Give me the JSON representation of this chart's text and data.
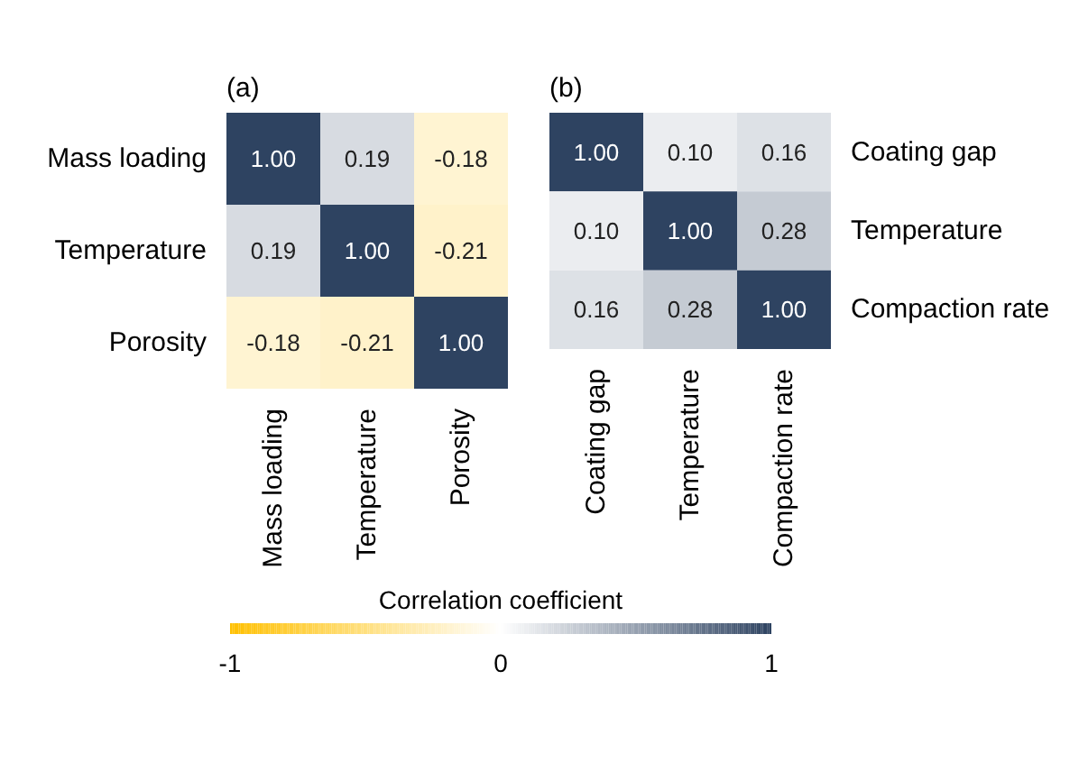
{
  "chart_data": [
    {
      "type": "heatmap",
      "title": "(a)",
      "categories": [
        "Mass loading",
        "Temperature",
        "Porosity"
      ],
      "y_categories": [
        "Mass loading",
        "Temperature",
        "Porosity"
      ],
      "cells": [
        [
          1,
          0.19,
          -0.18
        ],
        [
          0.19,
          1,
          -0.21
        ],
        [
          -0.18,
          -0.21,
          1
        ]
      ],
      "cell_labels": [
        [
          "1.00",
          "0.19",
          "-0.18"
        ],
        [
          "0.19",
          "1.00",
          "-0.21"
        ],
        [
          "-0.18",
          "-0.21",
          "1.00"
        ]
      ],
      "colors": [
        "#ffc000",
        "#ffffff",
        "#2e4361"
      ]
    },
    {
      "type": "heatmap",
      "title": "(b)",
      "categories": [
        "Coating gap",
        "Temperature",
        "Compaction rate"
      ],
      "y_categories": [
        "Coating gap",
        "Temperature",
        "Compaction rate"
      ],
      "cells": [
        [
          1,
          0.1,
          0.16
        ],
        [
          0.1,
          1,
          0.28
        ],
        [
          0.16,
          0.28,
          1
        ]
      ],
      "cell_labels": [
        [
          "1.00",
          "0.10",
          "0.16"
        ],
        [
          "0.10",
          "1.00",
          "0.28"
        ],
        [
          "0.16",
          "0.28",
          "1.00"
        ]
      ],
      "colors": [
        "#ffc000",
        "#ffffff",
        "#2e4361"
      ],
      "clim": [
        -1,
        1
      ],
      "clabel": "Correlation coefficient",
      "cticks": [
        -1,
        0,
        1
      ]
    }
  ]
}
